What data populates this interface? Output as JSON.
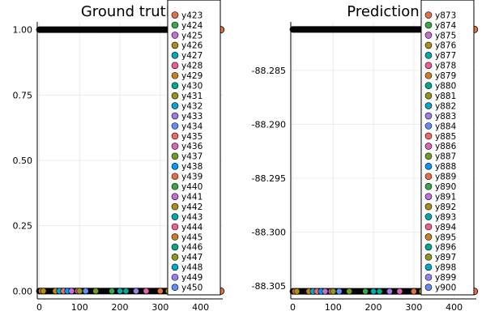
{
  "chart_data": [
    {
      "type": "scatter",
      "title": "Ground truth",
      "xlabel": "",
      "ylabel": "",
      "xlim": [
        -5,
        455
      ],
      "ylim": [
        -0.03,
        1.03
      ],
      "xticks": [
        0,
        100,
        200,
        300,
        400
      ],
      "yticks": [
        0.0,
        0.25,
        0.5,
        0.75,
        1.0
      ],
      "ytick_labels": [
        "0.00",
        "0.25",
        "0.50",
        "0.75",
        "1.00"
      ],
      "grid": true,
      "legend_placement": "top-right",
      "legend_entries": [
        "y423",
        "y424",
        "y425",
        "y426",
        "y427",
        "y428",
        "y429",
        "y430",
        "y431",
        "y432",
        "y433",
        "y434",
        "y435",
        "y436",
        "y437",
        "y438",
        "y439",
        "y440",
        "y441",
        "y442",
        "y443",
        "y444",
        "y445",
        "y446",
        "y447",
        "y448",
        "y449",
        "y450"
      ],
      "series_note": "Many series (each a single point) concentrated at y=0 and y=1 along x from 0 to 450",
      "x_range": [
        0,
        450
      ],
      "y_levels": [
        0,
        1
      ],
      "highlight_points": [
        {
          "x": 450,
          "y": 1
        },
        {
          "x": 450,
          "y": 0
        }
      ]
    },
    {
      "type": "scatter",
      "title": "Prediction",
      "xlabel": "",
      "ylabel": "",
      "xlim": [
        -5,
        455
      ],
      "ylim": [
        -88.3062,
        -88.2805
      ],
      "xticks": [
        0,
        100,
        200,
        300,
        400
      ],
      "yticks": [
        -88.285,
        -88.29,
        -88.295,
        -88.3,
        -88.305
      ],
      "ytick_labels": [
        "-88.285",
        "-88.290",
        "-88.295",
        "-88.300",
        "-88.305"
      ],
      "grid": true,
      "legend_placement": "top-right",
      "legend_entries": [
        "y873",
        "y874",
        "y875",
        "y876",
        "y877",
        "y878",
        "y879",
        "y880",
        "y881",
        "y882",
        "y883",
        "y884",
        "y885",
        "y886",
        "y887",
        "y888",
        "y889",
        "y890",
        "y891",
        "y892",
        "y893",
        "y894",
        "y895",
        "y896",
        "y897",
        "y898",
        "y899",
        "y900"
      ],
      "series_note": "Many series concentrated at two levels along x from 0 to 450",
      "x_range": [
        0,
        450
      ],
      "y_levels": [
        -88.3055,
        -88.2812
      ],
      "highlight_points": [
        {
          "x": 450,
          "y": -88.2812
        },
        {
          "x": 450,
          "y": -88.3055
        }
      ]
    }
  ],
  "palette": [
    "#e26f46",
    "#3da44d",
    "#c271d2",
    "#ac8e18",
    "#00a9ad",
    "#ed5e93",
    "#c68125",
    "#00a98d",
    "#8e971e",
    "#00a8cb",
    "#9b7fe8",
    "#618df6",
    "#f0686a",
    "#dd64b5",
    "#6b9d29",
    "#009af9"
  ]
}
